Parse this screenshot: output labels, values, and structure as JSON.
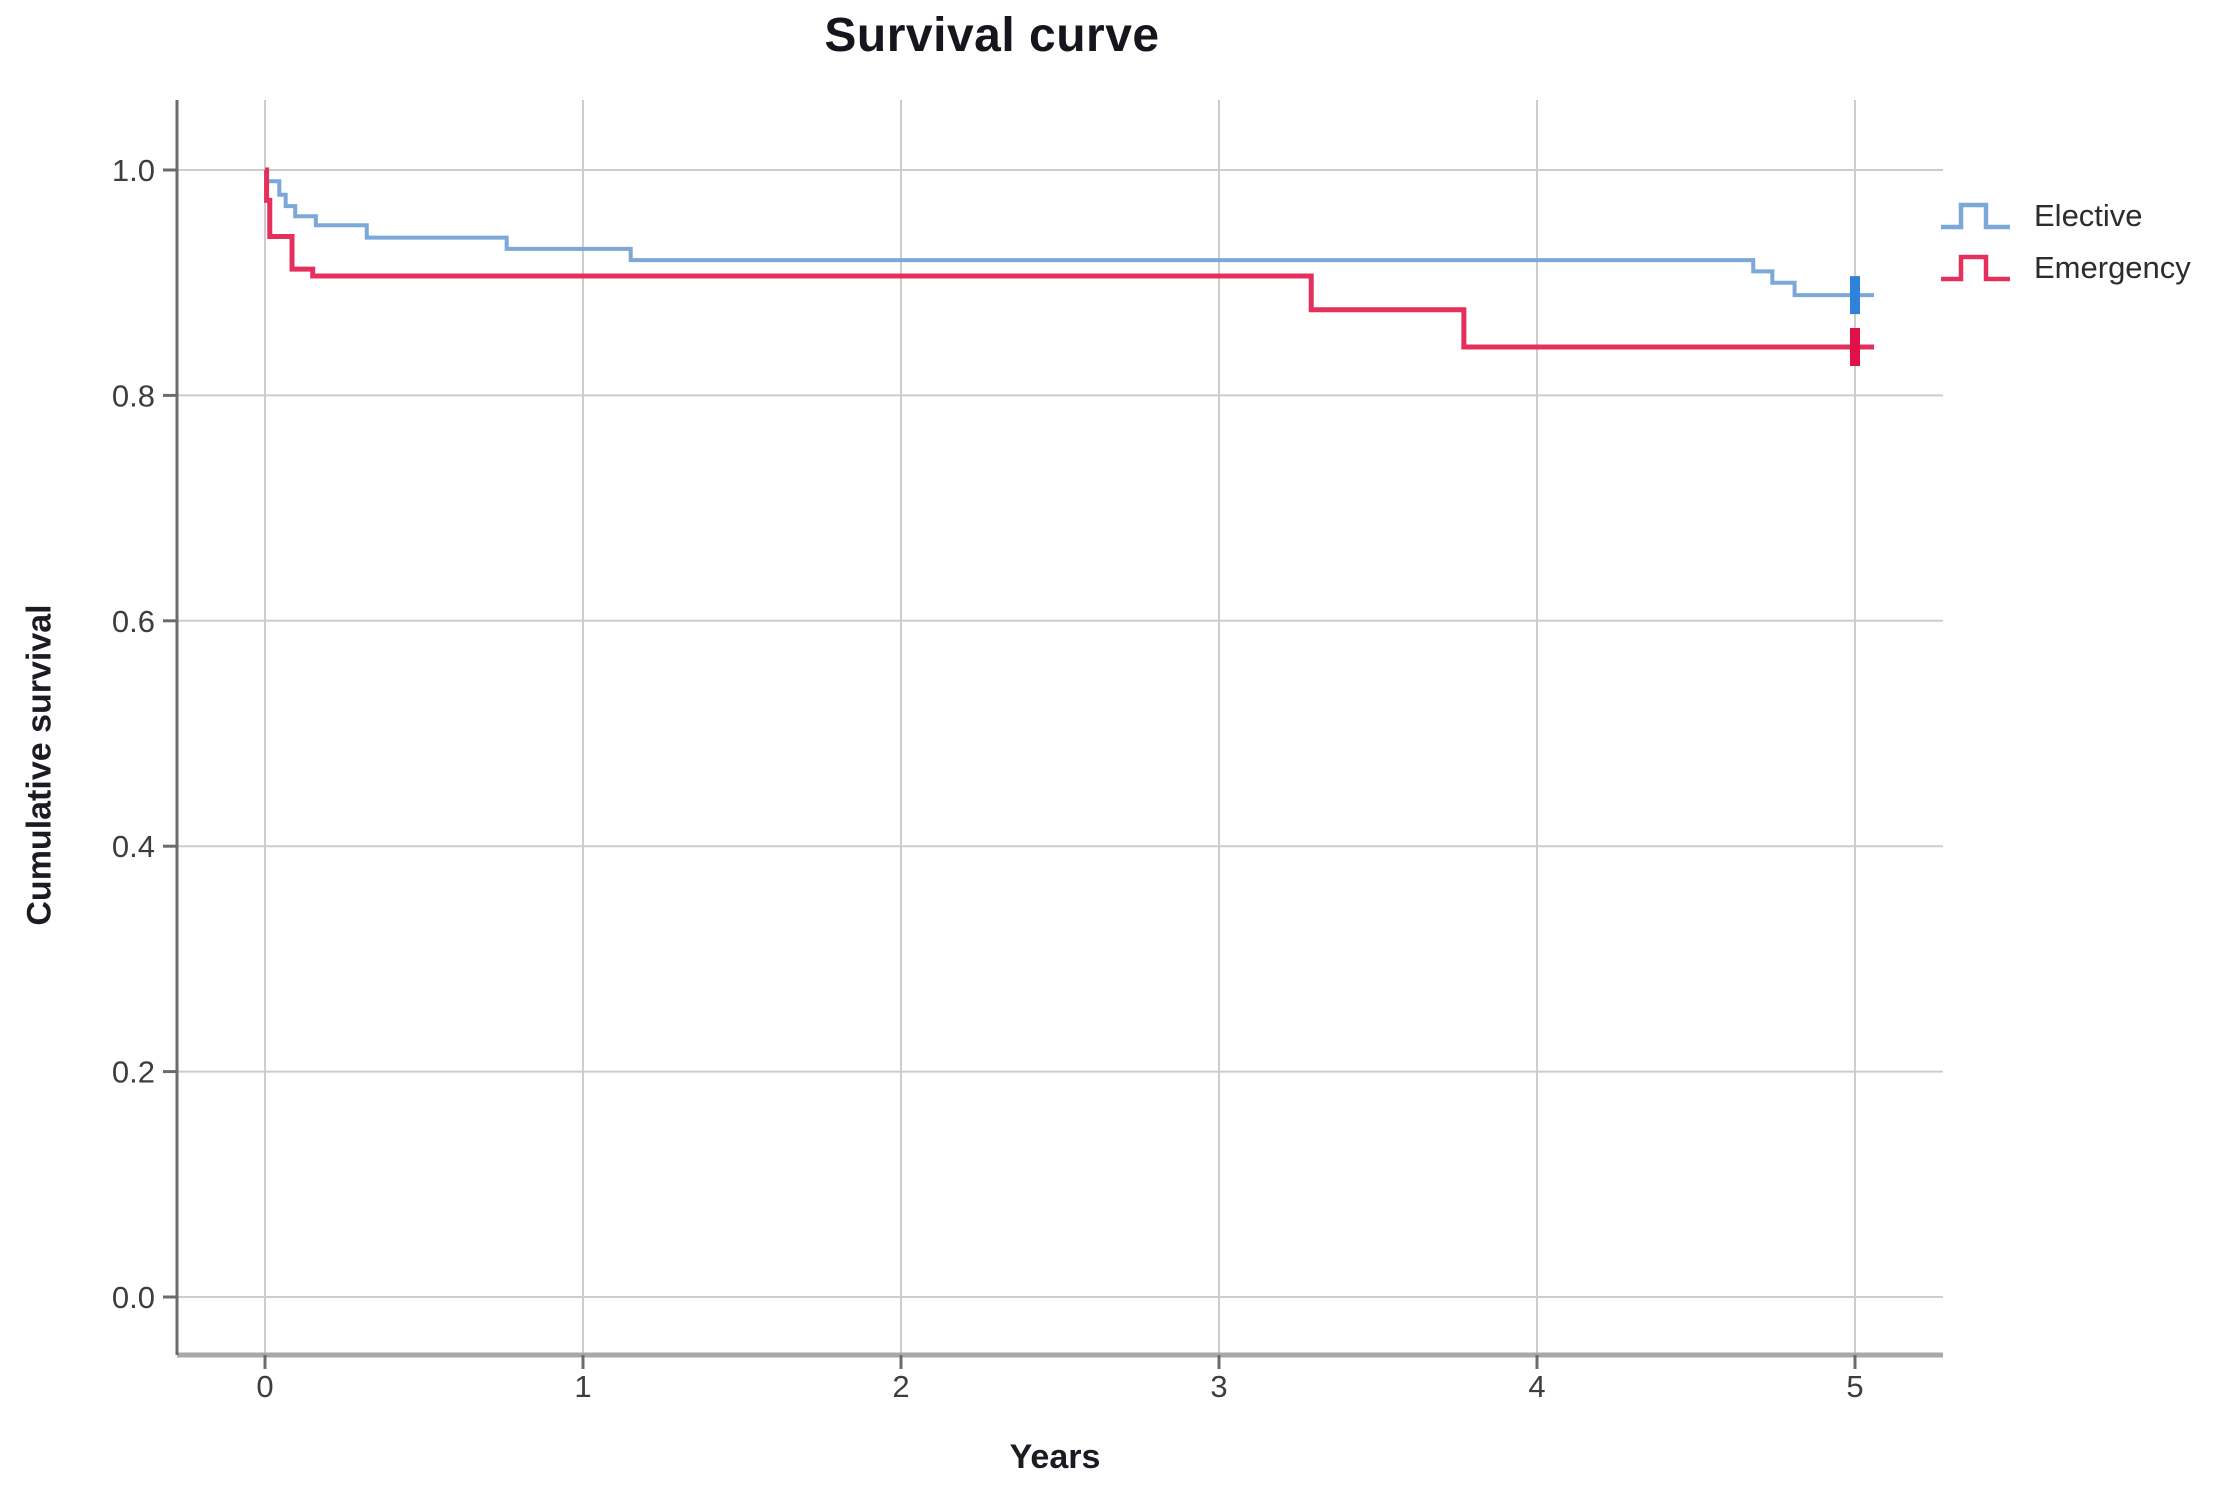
{
  "title": "Survival curve",
  "axes": {
    "x_label": "Years",
    "y_label": "Cumulative survival",
    "x_ticks": [
      {
        "v": 0,
        "label": "0"
      },
      {
        "v": 1,
        "label": "1"
      },
      {
        "v": 2,
        "label": "2"
      },
      {
        "v": 3,
        "label": "3"
      },
      {
        "v": 4,
        "label": "4"
      },
      {
        "v": 5,
        "label": "5"
      }
    ],
    "y_ticks": [
      {
        "v": 0.0,
        "label": "0.0"
      },
      {
        "v": 0.2,
        "label": "0.2"
      },
      {
        "v": 0.4,
        "label": "0.4"
      },
      {
        "v": 0.6,
        "label": "0.6"
      },
      {
        "v": 0.8,
        "label": "0.8"
      },
      {
        "v": 1.0,
        "label": "1.0"
      }
    ]
  },
  "colors": {
    "gridline": "#cdcdcd",
    "y_axis_line": "#6b6b6b",
    "x_axis_line": "#a8a8a8",
    "tick": "#6b6b6b",
    "tick_label": "#3d3d3d",
    "title_text": "#15161d"
  },
  "chart_data": {
    "type": "line",
    "subtype": "kaplan-meier-step",
    "title": "Survival curve",
    "xlabel": "Years",
    "ylabel": "Cumulative survival",
    "xlim": [
      0,
      5
    ],
    "ylim": [
      0.0,
      1.0
    ],
    "grid": true,
    "legend_position": "right",
    "series": [
      {
        "name": "Elective",
        "color": "#7ba7d9",
        "censor_color": "#2f82da",
        "line_width": 4,
        "points": [
          [
            0,
            1.0
          ],
          [
            0.005,
            0.99
          ],
          [
            0.045,
            0.978
          ],
          [
            0.065,
            0.968
          ],
          [
            0.095,
            0.959
          ],
          [
            0.16,
            0.951
          ],
          [
            0.32,
            0.94
          ],
          [
            0.76,
            0.93
          ],
          [
            1.15,
            0.92
          ],
          [
            4.68,
            0.91
          ],
          [
            4.74,
            0.9
          ],
          [
            4.81,
            0.889
          ],
          [
            5.06,
            0.889
          ]
        ],
        "censored": [
          [
            5.0,
            0.889
          ]
        ]
      },
      {
        "name": "Emergency",
        "color": "#e3305c",
        "censor_color": "#e11048",
        "line_width": 5,
        "points": [
          [
            0,
            1.0
          ],
          [
            0.005,
            0.973
          ],
          [
            0.015,
            0.941
          ],
          [
            0.085,
            0.912
          ],
          [
            0.15,
            0.906
          ],
          [
            3.29,
            0.876
          ],
          [
            3.77,
            0.843
          ],
          [
            5.06,
            0.843
          ]
        ],
        "censored": [
          [
            5.0,
            0.843
          ]
        ]
      }
    ]
  }
}
